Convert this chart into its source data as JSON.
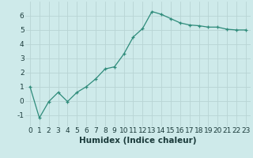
{
  "x": [
    0,
    1,
    2,
    3,
    4,
    5,
    6,
    7,
    8,
    9,
    10,
    11,
    12,
    13,
    14,
    15,
    16,
    17,
    18,
    19,
    20,
    21,
    22,
    23
  ],
  "y": [
    1.0,
    -1.2,
    -0.05,
    0.6,
    -0.05,
    0.6,
    1.0,
    1.55,
    2.25,
    2.4,
    3.3,
    4.5,
    5.1,
    6.3,
    6.1,
    5.8,
    5.5,
    5.35,
    5.3,
    5.2,
    5.2,
    5.05,
    5.0,
    5.0
  ],
  "xlabel": "Humidex (Indice chaleur)",
  "ylim": [
    -1.8,
    7.0
  ],
  "xlim": [
    -0.5,
    23.5
  ],
  "yticks": [
    -1,
    0,
    1,
    2,
    3,
    4,
    5,
    6
  ],
  "xticks": [
    0,
    1,
    2,
    3,
    4,
    5,
    6,
    7,
    8,
    9,
    10,
    11,
    12,
    13,
    14,
    15,
    16,
    17,
    18,
    19,
    20,
    21,
    22,
    23
  ],
  "line_color": "#2e8b7a",
  "marker": "+",
  "bg_color": "#ceeaea",
  "grid_color": "#b8d4d4",
  "axis_label_color": "#1a3a3a",
  "xlabel_fontsize": 7.5,
  "tick_fontsize": 6.5
}
